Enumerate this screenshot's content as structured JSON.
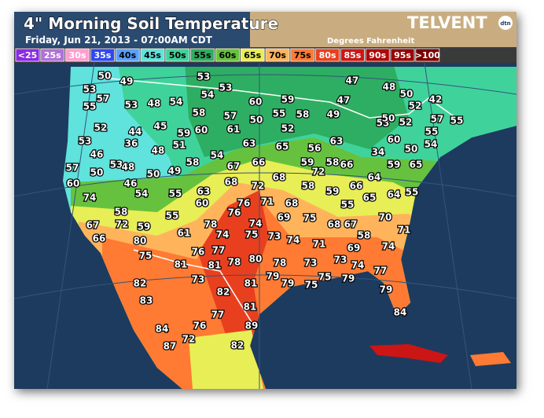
{
  "header": {
    "title": "4\" Morning Soil Temperature",
    "subtitle": "Friday, Jun 21, 2013 - 07:00AM CDT",
    "units": "Degrees Fahrenheit",
    "logo": "TELVENT",
    "logo_badge": "dtn"
  },
  "legend": [
    {
      "label": "<25",
      "color": "#8a2be2"
    },
    {
      "label": "25s",
      "color": "#b070d8"
    },
    {
      "label": "30s",
      "color": "#ff9fd0"
    },
    {
      "label": "35s",
      "color": "#3048f0"
    },
    {
      "label": "40s",
      "color": "#5aa0ff"
    },
    {
      "label": "45s",
      "color": "#5fe3dc"
    },
    {
      "label": "50s",
      "color": "#3fd39b"
    },
    {
      "label": "55s",
      "color": "#2eae62"
    },
    {
      "label": "60s",
      "color": "#66c23e"
    },
    {
      "label": "65s",
      "color": "#e8ee55"
    },
    {
      "label": "70s",
      "color": "#ffb45c"
    },
    {
      "label": "75s",
      "color": "#ff7a33"
    },
    {
      "label": "80s",
      "color": "#e8401f"
    },
    {
      "label": "85s",
      "color": "#cc1515"
    },
    {
      "label": "90s",
      "color": "#b00808"
    },
    {
      "label": "95s",
      "color": "#990000"
    },
    {
      "label": ">100",
      "color": "#7a0000"
    }
  ],
  "stations": [
    50,
    49,
    53,
    53,
    47,
    48,
    54,
    50,
    53,
    57,
    53,
    48,
    54,
    60,
    59,
    47,
    42,
    52,
    55,
    58,
    57,
    55,
    58,
    49,
    50,
    52,
    59,
    60,
    61,
    52,
    45,
    44,
    53,
    50,
    57,
    55,
    52,
    55,
    53,
    36,
    51,
    63,
    65,
    56,
    63,
    60,
    54,
    46,
    48,
    54,
    34,
    50,
    53,
    48,
    58,
    59,
    58,
    66,
    59,
    65,
    57,
    50,
    50,
    49,
    67,
    66,
    72,
    68,
    64,
    60,
    46,
    68,
    72,
    58,
    66,
    59,
    64,
    55,
    74,
    54,
    55,
    63,
    60,
    76,
    71,
    68,
    65,
    55,
    69,
    75,
    76,
    58,
    59,
    55,
    70,
    67,
    72,
    74,
    78,
    68,
    67,
    71,
    66,
    80,
    61,
    74,
    75,
    73,
    74,
    58,
    71,
    74,
    75,
    76,
    77,
    69,
    81,
    81,
    78,
    80,
    78,
    73,
    73,
    74,
    77,
    79,
    75,
    79,
    73,
    82,
    81,
    79,
    75,
    82,
    79,
    83,
    81,
    84,
    77,
    84,
    76,
    89,
    87,
    72,
    82
  ]
}
